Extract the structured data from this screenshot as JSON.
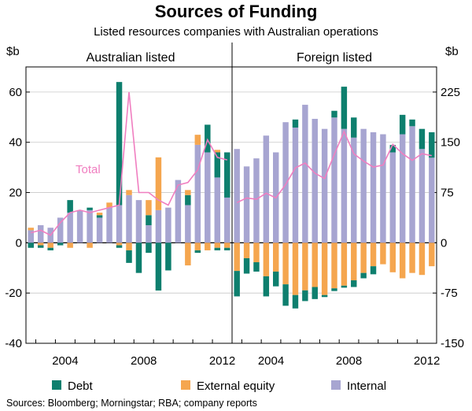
{
  "chart_data": {
    "type": "bar",
    "title": "Sources of Funding",
    "subtitle": "Listed resources companies with Australian operations",
    "source": "Sources: Bloomberg; Morningstar; RBA; company reports",
    "colors": {
      "debt": "#0e7f6e",
      "equity": "#f5a64f",
      "internal": "#a7a5d1",
      "total": "#f07ec0"
    },
    "legend": {
      "placement": "bottom",
      "items": [
        "Debt",
        "External equity",
        "Internal"
      ]
    },
    "panels": [
      {
        "name": "Australian listed",
        "unit_label": "$b",
        "ylim": [
          -40,
          70
        ],
        "yticks": [
          -40,
          -20,
          0,
          20,
          40,
          60
        ],
        "xlabels": [
          "2004",
          "2008",
          "2012"
        ],
        "total_label": "Total",
        "half_years": [
          "2002-H2",
          "2003-H1",
          "2003-H2",
          "2004-H1",
          "2004-H2",
          "2005-H1",
          "2005-H2",
          "2006-H1",
          "2006-H2",
          "2007-H1",
          "2007-H2",
          "2008-H1",
          "2008-H2",
          "2009-H1",
          "2009-H2",
          "2010-H1",
          "2010-H2",
          "2011-H1",
          "2011-H2",
          "2012-H1",
          "2012-H2"
        ],
        "internal": [
          5,
          7,
          6,
          10,
          12,
          13,
          13,
          10,
          14,
          15,
          19,
          17,
          7,
          13,
          14,
          25,
          15,
          39,
          36,
          26,
          18
        ],
        "debt_pos": [
          0,
          0,
          0,
          0,
          5,
          0,
          1,
          1,
          0,
          49,
          0,
          0,
          4,
          0,
          0,
          0,
          4,
          0,
          11,
          10,
          18
        ],
        "equity_pos": [
          1,
          0,
          0,
          0,
          0,
          0,
          0,
          1,
          2,
          0,
          2,
          0,
          6,
          21,
          0,
          0,
          2,
          4,
          0,
          1,
          0
        ],
        "debt_neg": [
          -2,
          -1,
          -1,
          -1,
          0,
          0,
          0,
          0,
          0,
          -1,
          -5,
          -12,
          -4,
          -19,
          -11,
          0,
          0,
          -1,
          0,
          -1,
          -1
        ],
        "equity_neg": [
          0,
          -1,
          -2,
          0,
          -2,
          0,
          -2,
          0,
          0,
          -1,
          -3,
          0,
          0,
          0,
          0,
          0,
          -9,
          -3,
          -3,
          -2,
          -2
        ],
        "total": [
          4,
          5,
          3,
          8,
          12,
          13,
          12,
          13,
          14,
          15,
          60,
          20,
          20,
          17,
          15,
          23,
          24,
          29,
          41,
          34,
          33
        ]
      },
      {
        "name": "Foreign listed",
        "unit_label": "$b",
        "ylim": [
          -150,
          262.5
        ],
        "yticks": [
          -150,
          -75,
          0,
          75,
          150,
          225
        ],
        "xlabels": [
          "2004",
          "2008",
          "2012"
        ],
        "half_years": [
          "2002-H2",
          "2003-H1",
          "2003-H2",
          "2004-H1",
          "2004-H2",
          "2005-H1",
          "2005-H2",
          "2006-H1",
          "2006-H2",
          "2007-H1",
          "2007-H2",
          "2008-H1",
          "2008-H2",
          "2009-H1",
          "2009-H2",
          "2010-H1",
          "2010-H2",
          "2011-H1",
          "2011-H2",
          "2012-H1",
          "2012-H2"
        ],
        "internal": [
          140,
          114,
          126,
          160,
          135,
          180,
          172,
          206,
          185,
          170,
          187,
          170,
          157,
          170,
          165,
          162,
          135,
          162,
          174,
          140,
          127
        ],
        "debt_pos": [
          0,
          0,
          0,
          0,
          0,
          0,
          12,
          0,
          0,
          0,
          10,
          63,
          30,
          0,
          0,
          0,
          11,
          29,
          10,
          30,
          38
        ],
        "equity_pos": [
          0,
          0,
          0,
          0,
          0,
          0,
          0,
          0,
          0,
          0,
          0,
          0,
          0,
          0,
          0,
          0,
          0,
          0,
          0,
          0,
          0
        ],
        "debt_neg": [
          -38,
          -23,
          -14,
          -30,
          -22,
          -32,
          -20,
          -16,
          -18,
          -3,
          -4,
          -3,
          -10,
          -8,
          -12,
          0,
          0,
          0,
          0,
          0,
          0
        ],
        "equity_neg": [
          -42,
          -23,
          -29,
          -50,
          -43,
          -62,
          -78,
          -71,
          -66,
          -78,
          -68,
          -64,
          -56,
          -45,
          -35,
          -32,
          -44,
          -53,
          -45,
          -48,
          -35
        ],
        "total": [
          60,
          67,
          65,
          74,
          67,
          87,
          112,
          119,
          104,
          96,
          132,
          166,
          133,
          122,
          113,
          116,
          147,
          133,
          123,
          133,
          130
        ]
      }
    ]
  }
}
